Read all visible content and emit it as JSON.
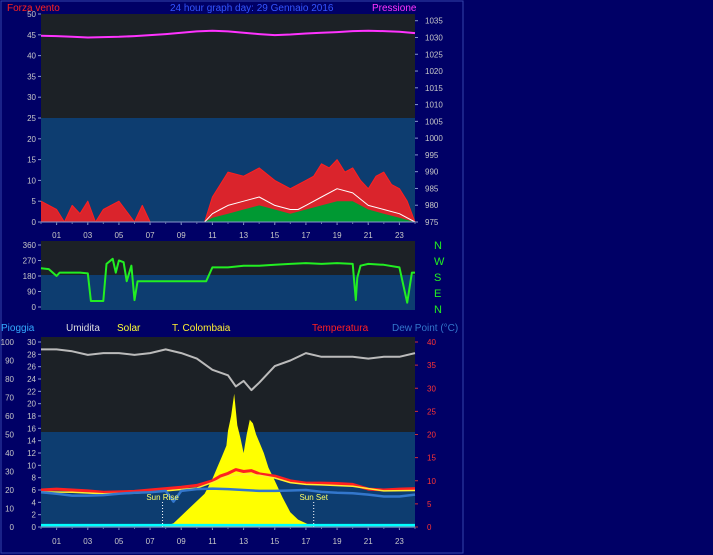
{
  "header": {
    "left_label": "Forza vento",
    "left_color": "#ff2020",
    "title": "24 hour graph day: 29 Gennaio 2016",
    "title_color": "#3355ff",
    "right_label": "Pressione",
    "right_color": "#ff33ff"
  },
  "compass": {
    "labels": [
      "N",
      "W",
      "S",
      "E",
      "N"
    ],
    "color": "#22ee22"
  },
  "lower_header": {
    "labels": [
      {
        "text": "Pioggia",
        "color": "#33aaff"
      },
      {
        "text": "Umidita",
        "color": "#dddddd"
      },
      {
        "text": "Solar",
        "color": "#ffff33"
      },
      {
        "text": "T. Colombaia",
        "color": "#ffee33"
      },
      {
        "text": "Temperatura",
        "color": "#ff2020"
      },
      {
        "text": "Dew Point (°C)",
        "color": "#3377cc"
      }
    ]
  },
  "chart_data": [
    {
      "type": "line",
      "panel": "wind-pressure",
      "x_ticks": [
        "01",
        "03",
        "05",
        "07",
        "09",
        "11",
        "13",
        "15",
        "17",
        "19",
        "21",
        "23"
      ],
      "x_range_hours": [
        0,
        24
      ],
      "y_left_ticks": [
        0,
        5,
        10,
        15,
        20,
        25,
        30,
        35,
        40,
        45,
        50
      ],
      "y_left_range": [
        0,
        50
      ],
      "y_right_ticks": [
        975,
        980,
        985,
        990,
        995,
        1000,
        1005,
        1010,
        1015,
        1020,
        1025,
        1030,
        1035
      ],
      "y_right_range": [
        975,
        1037
      ],
      "series": [
        {
          "name": "Pressione",
          "axis": "right",
          "color": "#ff33ff",
          "x": [
            0,
            1,
            2,
            3,
            4,
            5,
            6,
            7,
            8,
            9,
            10,
            11,
            12,
            13,
            14,
            15,
            16,
            17,
            18,
            19,
            20,
            21,
            22,
            23,
            24
          ],
          "y": [
            1030.5,
            1030.4,
            1030.2,
            1030.0,
            1030.1,
            1030.2,
            1030.4,
            1030.7,
            1031.0,
            1031.4,
            1031.8,
            1032.0,
            1031.8,
            1031.4,
            1031.0,
            1030.7,
            1030.9,
            1031.2,
            1031.4,
            1031.6,
            1031.9,
            1032.0,
            1031.9,
            1031.7,
            1031.3
          ]
        },
        {
          "name": "Forza vento",
          "axis": "left",
          "color": "#ff2020",
          "x": [
            0,
            1,
            1.5,
            2,
            2.5,
            3,
            3.5,
            4,
            5,
            6,
            6.5,
            7,
            8,
            9,
            10,
            10.5,
            11,
            11.5,
            12,
            13,
            14,
            15,
            16,
            16.5,
            17,
            17.5,
            18,
            18.5,
            19,
            19.5,
            20,
            20.5,
            21,
            21.5,
            22,
            22.5,
            23,
            23.5,
            24
          ],
          "y": [
            5,
            3,
            0,
            4,
            2,
            5,
            0,
            3,
            5,
            0,
            4,
            0,
            0,
            0,
            0,
            0,
            6,
            9,
            12,
            11,
            13,
            10,
            8,
            9,
            10,
            11,
            14,
            13,
            15,
            12,
            13,
            10,
            8,
            11,
            12,
            9,
            8,
            5,
            0
          ]
        },
        {
          "name": "Raffica media",
          "axis": "left",
          "color": "#ffffff",
          "x": [
            0,
            10.5,
            11,
            11.5,
            12,
            13,
            14,
            15,
            16,
            16.5,
            17,
            18,
            19,
            20,
            21,
            22,
            23,
            24
          ],
          "y": [
            0,
            0,
            2,
            3,
            4,
            5,
            6,
            4,
            3,
            3,
            4,
            6,
            8,
            7,
            4,
            3,
            2,
            0
          ]
        },
        {
          "name": "Vento medio",
          "axis": "left",
          "color": "#009933",
          "x": [
            0,
            10.5,
            11,
            12,
            13,
            14,
            15,
            16,
            17,
            18,
            19,
            20,
            21,
            22,
            23,
            24
          ],
          "y": [
            0,
            0,
            1,
            2,
            3,
            4,
            3,
            2,
            3,
            4,
            5,
            5,
            3,
            2,
            1,
            0
          ]
        }
      ]
    },
    {
      "type": "line",
      "panel": "wind-direction",
      "x_range_hours": [
        0,
        24
      ],
      "y_ticks": [
        0,
        90,
        180,
        270,
        360
      ],
      "y_range": [
        0,
        360
      ],
      "series": [
        {
          "name": "Direzione vento",
          "color": "#22ee22",
          "x": [
            0,
            0.5,
            1,
            1.2,
            2.5,
            3,
            3.2,
            4,
            4.2,
            4.6,
            4.8,
            5,
            5.3,
            5.5,
            5.8,
            6,
            6.2,
            6.4,
            7,
            8,
            9,
            10,
            10.4,
            10.6,
            11,
            12,
            13,
            14,
            15,
            16,
            17,
            18,
            19,
            20,
            20.2,
            20.3,
            20.5,
            21,
            22,
            23,
            23.5,
            23.8,
            24
          ],
          "y": [
            225,
            220,
            180,
            200,
            200,
            195,
            35,
            35,
            250,
            280,
            200,
            270,
            260,
            150,
            240,
            40,
            150,
            150,
            150,
            150,
            150,
            150,
            150,
            150,
            230,
            230,
            240,
            240,
            245,
            250,
            255,
            250,
            255,
            250,
            40,
            170,
            240,
            250,
            245,
            230,
            25,
            200,
            200
          ]
        }
      ]
    },
    {
      "type": "line",
      "panel": "temp-humidity-solar",
      "x_range_hours": [
        0,
        24
      ],
      "y_left_ticks": [
        0,
        10,
        20,
        30,
        40,
        50,
        60,
        70,
        80,
        90,
        100
      ],
      "y_left_range": [
        0,
        100
      ],
      "y_left2_ticks": [
        0,
        2,
        4,
        6,
        8,
        10,
        12,
        14,
        16,
        18,
        20,
        22,
        24,
        26,
        28,
        30
      ],
      "y_left2_range": [
        0,
        30
      ],
      "y_right_ticks": [
        0,
        5,
        10,
        15,
        20,
        25,
        30,
        35,
        40
      ],
      "y_right_range": [
        0,
        40
      ],
      "annotations": [
        {
          "text": "Sun Rise",
          "x": 7.8
        },
        {
          "text": "Sun Set",
          "x": 17.5
        }
      ],
      "series": [
        {
          "name": "Umidita",
          "axis": "left",
          "color": "#bbbbbb",
          "x": [
            0,
            1,
            2,
            3,
            4,
            5,
            6,
            7,
            8,
            9,
            10,
            11,
            12,
            12.5,
            13,
            13.5,
            14,
            15,
            16,
            17,
            18,
            19,
            20,
            21,
            22,
            23,
            24
          ],
          "y": [
            96,
            96,
            95,
            93,
            94,
            94,
            93,
            94,
            96,
            94,
            91,
            85,
            82,
            76,
            79,
            74,
            78,
            87,
            90,
            94,
            92,
            92,
            92,
            91,
            92,
            92,
            94
          ]
        },
        {
          "name": "Temperatura",
          "axis": "right",
          "color": "#ff2020",
          "x": [
            0,
            1,
            2,
            3,
            4,
            5,
            6,
            7,
            8,
            9,
            10,
            11,
            11.5,
            12,
            12.5,
            13,
            13.5,
            14,
            15,
            16,
            17,
            18,
            19,
            20,
            21,
            22,
            23,
            24
          ],
          "y": [
            8.0,
            8.2,
            8.0,
            7.8,
            7.5,
            7.6,
            7.7,
            8.0,
            8.3,
            8.6,
            9.0,
            10.0,
            11.0,
            11.6,
            12.4,
            12.0,
            12.2,
            11.5,
            11.0,
            10.0,
            9.5,
            9.5,
            9.4,
            9.2,
            8.2,
            8.0,
            8.2,
            8.3
          ]
        },
        {
          "name": "T. Colombaia",
          "axis": "right",
          "color": "#ffee33",
          "x": [
            0,
            2,
            4,
            6,
            8,
            10,
            11,
            12,
            13,
            14,
            15,
            16,
            17,
            18,
            20,
            22,
            24
          ],
          "y": [
            7.6,
            7.5,
            7.2,
            7.3,
            7.8,
            8.4,
            9.6,
            11.0,
            11.4,
            11.2,
            10.6,
            9.6,
            9.2,
            9.1,
            8.8,
            7.8,
            7.9
          ]
        },
        {
          "name": "Dew Point (°C)",
          "axis": "right",
          "color": "#3377cc",
          "x": [
            0,
            1,
            2,
            3,
            4,
            5,
            6,
            7,
            8,
            8.5,
            9,
            10,
            11,
            12,
            13,
            14,
            15,
            16,
            17,
            18,
            19,
            20,
            21,
            22,
            23,
            24
          ],
          "y": [
            7.5,
            7.2,
            6.8,
            6.8,
            6.9,
            7.2,
            7.4,
            7.5,
            7.8,
            5.5,
            7.8,
            8.2,
            8.3,
            8.2,
            8.0,
            7.8,
            7.8,
            7.9,
            8.0,
            7.6,
            7.4,
            7.3,
            7.0,
            6.6,
            6.6,
            7.0
          ]
        },
        {
          "name": "Solar",
          "axis": "left",
          "color": "#ffff00",
          "x": [
            0,
            7.8,
            8.5,
            9,
            9.5,
            10,
            10.5,
            11,
            11.3,
            11.6,
            11.9,
            12,
            12.2,
            12.4,
            12.6,
            12.8,
            13,
            13.2,
            13.4,
            13.6,
            13.8,
            14,
            14.3,
            14.6,
            15,
            15.5,
            16,
            16.5,
            17,
            17.5,
            24
          ],
          "y": [
            0,
            0,
            2,
            6,
            10,
            14,
            18,
            26,
            32,
            38,
            44,
            52,
            60,
            72,
            55,
            48,
            40,
            50,
            58,
            56,
            50,
            46,
            40,
            32,
            25,
            16,
            8,
            4,
            2,
            0,
            0
          ]
        },
        {
          "name": "Pioggia",
          "axis": "left2",
          "color": "#00ffff",
          "x": [
            0,
            24
          ],
          "y": [
            0.3,
            0.3
          ]
        }
      ]
    }
  ]
}
